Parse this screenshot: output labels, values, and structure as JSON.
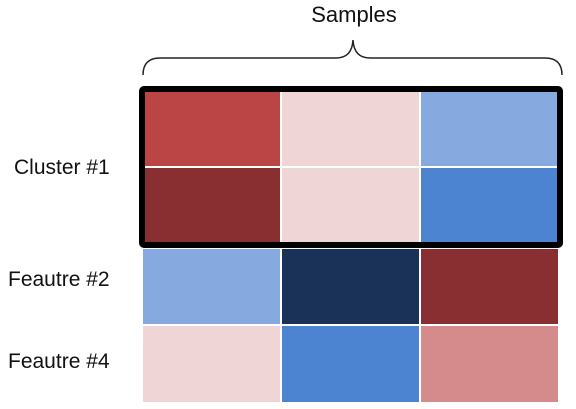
{
  "title": "Samples",
  "rows": [
    {
      "label": "Cluster #1",
      "cells": [
        "#bb4545",
        "#f0d5d7",
        "#86a9df"
      ]
    },
    {
      "label": "",
      "cells": [
        "#892f31",
        "#f0d5d7",
        "#4c84d2"
      ]
    },
    {
      "label": "Feautre #2",
      "cells": [
        "#86a9df",
        "#1a3158",
        "#892f31"
      ]
    },
    {
      "label": "Feautre #4",
      "cells": [
        "#f0d5d7",
        "#4c84d2",
        "#d58a8b"
      ]
    }
  ],
  "highlight": {
    "label": "Cluster #1",
    "rows": [
      0,
      1
    ]
  }
}
